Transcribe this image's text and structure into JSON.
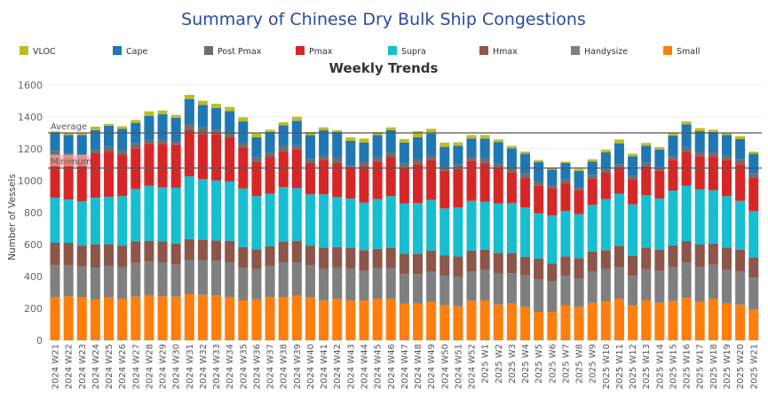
{
  "chart_data": {
    "type": "bar",
    "stacked": true,
    "title": "Summary of Chinese Dry Bulk Ship Congestions",
    "subtitle": "Weekly Trends",
    "xlabel": "",
    "ylabel": "Number of Vessels",
    "ylim": [
      0,
      1600
    ],
    "yticks": [
      0,
      200,
      400,
      600,
      800,
      1000,
      1200,
      1400,
      1600
    ],
    "grid": true,
    "legend_position": "top",
    "reference_lines": [
      {
        "label": "Average",
        "value": 1300,
        "color": "#555555"
      },
      {
        "label": "Minimum",
        "value": 1080,
        "color": "#555555"
      }
    ],
    "categories": [
      "2024 W21",
      "2024 W22",
      "2024 W23",
      "2024 W24",
      "2024 W25",
      "2024 W26",
      "2024 W27",
      "2024 W28",
      "2024 W29",
      "2024 W30",
      "2024 W31",
      "2024 W32",
      "2024 W33",
      "2024 W34",
      "2024 W35",
      "2024 W36",
      "2024 W37",
      "2024 W38",
      "2024 W39",
      "2024 W40",
      "2024 W41",
      "2024 W42",
      "2024 W43",
      "2024 W44",
      "2024 W45",
      "2024 W46",
      "2024 W47",
      "2024 W48",
      "2024 W49",
      "2024 W50",
      "2024 W51",
      "2024 W52",
      "2025 W1",
      "2025 W2",
      "2025 W3",
      "2025 W4",
      "2025 W5",
      "2025 W6",
      "2025 W7",
      "2025 W8",
      "2025 W9",
      "2025 W10",
      "2025 W11",
      "2025 W12",
      "2025 W13",
      "2025 W14",
      "2025 W15",
      "2025 W16",
      "2025 W17",
      "2025 W18",
      "2025 W19",
      "2025 W20",
      "2025 W21"
    ],
    "series": [
      {
        "name": "Small",
        "color": "#ff7f0e",
        "values": [
          272,
          276,
          270,
          256,
          270,
          261,
          274,
          281,
          276,
          274,
          289,
          285,
          281,
          270,
          250,
          256,
          272,
          270,
          280,
          270,
          248,
          259,
          248,
          250,
          261,
          259,
          230,
          230,
          241,
          220,
          213,
          248,
          250,
          224,
          231,
          209,
          178,
          178,
          219,
          209,
          235,
          244,
          261,
          219,
          250,
          235,
          246,
          265,
          241,
          259,
          231,
          224,
          194
        ]
      },
      {
        "name": "Handysize",
        "color": "#7f7f7f",
        "values": [
          200,
          196,
          193,
          199,
          197,
          196,
          211,
          212,
          213,
          202,
          213,
          217,
          217,
          219,
          205,
          190,
          195,
          217,
          209,
          202,
          198,
          197,
          200,
          185,
          191,
          193,
          185,
          185,
          189,
          184,
          185,
          183,
          191,
          195,
          191,
          198,
          205,
          191,
          185,
          180,
          195,
          202,
          196,
          185,
          196,
          200,
          215,
          222,
          220,
          215,
          213,
          207,
          200
        ]
      },
      {
        "name": "Hmax",
        "color": "#8c564b",
        "values": [
          139,
          139,
          131,
          147,
          135,
          137,
          135,
          131,
          131,
          130,
          133,
          128,
          128,
          135,
          130,
          123,
          122,
          133,
          135,
          122,
          136,
          129,
          132,
          130,
          122,
          128,
          128,
          128,
          133,
          129,
          128,
          132,
          126,
          129,
          126,
          117,
          130,
          112,
          122,
          126,
          126,
          119,
          136,
          124,
          136,
          132,
          134,
          135,
          139,
          132,
          138,
          136,
          125
        ]
      },
      {
        "name": "Supra",
        "color": "#17becf",
        "values": [
          283,
          272,
          278,
          292,
          298,
          310,
          330,
          345,
          339,
          350,
          393,
          381,
          376,
          371,
          367,
          335,
          330,
          341,
          330,
          321,
          333,
          313,
          309,
          298,
          311,
          324,
          314,
          318,
          317,
          293,
          306,
          311,
          302,
          309,
          313,
          309,
          283,
          302,
          285,
          276,
          294,
          320,
          326,
          324,
          327,
          322,
          344,
          347,
          346,
          335,
          322,
          307,
          292
        ]
      },
      {
        "name": "Pmax",
        "color": "#d62728",
        "values": [
          256,
          267,
          278,
          278,
          283,
          260,
          254,
          263,
          273,
          270,
          289,
          282,
          291,
          277,
          257,
          213,
          231,
          222,
          241,
          196,
          215,
          213,
          193,
          226,
          235,
          246,
          228,
          243,
          248,
          237,
          242,
          252,
          244,
          230,
          193,
          187,
          172,
          171,
          176,
          150,
          163,
          165,
          161,
          157,
          180,
          176,
          193,
          209,
          208,
          211,
          226,
          230,
          208
        ]
      },
      {
        "name": "Post Pmax",
        "color": "#6e6e6e",
        "values": [
          37,
          18,
          13,
          24,
          30,
          28,
          31,
          29,
          29,
          24,
          37,
          41,
          27,
          26,
          30,
          29,
          28,
          34,
          29,
          26,
          31,
          34,
          18,
          28,
          25,
          28,
          24,
          35,
          33,
          26,
          30,
          24,
          28,
          24,
          26,
          26,
          26,
          15,
          22,
          18,
          24,
          24,
          24,
          24,
          24,
          20,
          22,
          31,
          26,
          26,
          26,
          31,
          27
        ]
      },
      {
        "name": "Cape",
        "color": "#1f77b4",
        "values": [
          113,
          119,
          124,
          121,
          132,
          133,
          128,
          146,
          156,
          145,
          159,
          142,
          136,
          139,
          133,
          126,
          128,
          131,
          152,
          150,
          157,
          161,
          150,
          122,
          142,
          139,
          130,
          135,
          135,
          124,
          115,
          115,
          124,
          132,
          124,
          123,
          123,
          101,
          102,
          102,
          83,
          104,
          131,
          121,
          106,
          111,
          129,
          145,
          131,
          128,
          131,
          126,
          123
        ]
      },
      {
        "name": "VLOC",
        "color": "#bcbd22",
        "values": [
          10,
          11,
          15,
          22,
          12,
          17,
          18,
          28,
          24,
          18,
          26,
          26,
          27,
          26,
          26,
          24,
          14,
          19,
          26,
          19,
          17,
          11,
          22,
          26,
          19,
          18,
          22,
          37,
          30,
          26,
          22,
          22,
          22,
          16,
          15,
          14,
          13,
          10,
          9,
          13,
          15,
          17,
          24,
          16,
          18,
          15,
          19,
          18,
          19,
          14,
          15,
          19,
          14
        ]
      }
    ],
    "legend_order": [
      "VLOC",
      "Cape",
      "Post Pmax",
      "Pmax",
      "Supra",
      "Hmax",
      "Handysize",
      "Small"
    ]
  }
}
